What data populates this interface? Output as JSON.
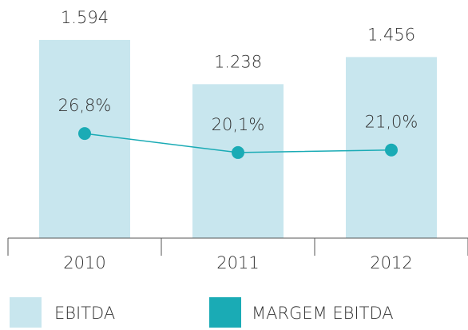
{
  "chart_data": {
    "type": "bar",
    "categories": [
      "2010",
      "2011",
      "2012"
    ],
    "series": [
      {
        "name": "EBITDA",
        "color": "#c8e6ee",
        "values": [
          1594,
          1238,
          1456
        ],
        "value_labels": [
          "1.594",
          "1.238",
          "1.456"
        ]
      },
      {
        "name": "MARGEM EBITDA",
        "type": "line",
        "axis": "y2",
        "color": "#1aabb5",
        "values": [
          26.8,
          20.1,
          21.0
        ],
        "value_labels": [
          "26,8%",
          "20,1%",
          "21,0%"
        ]
      }
    ],
    "ylim": [
      0,
      1600
    ],
    "y2lim": [
      -10,
      60
    ]
  }
}
